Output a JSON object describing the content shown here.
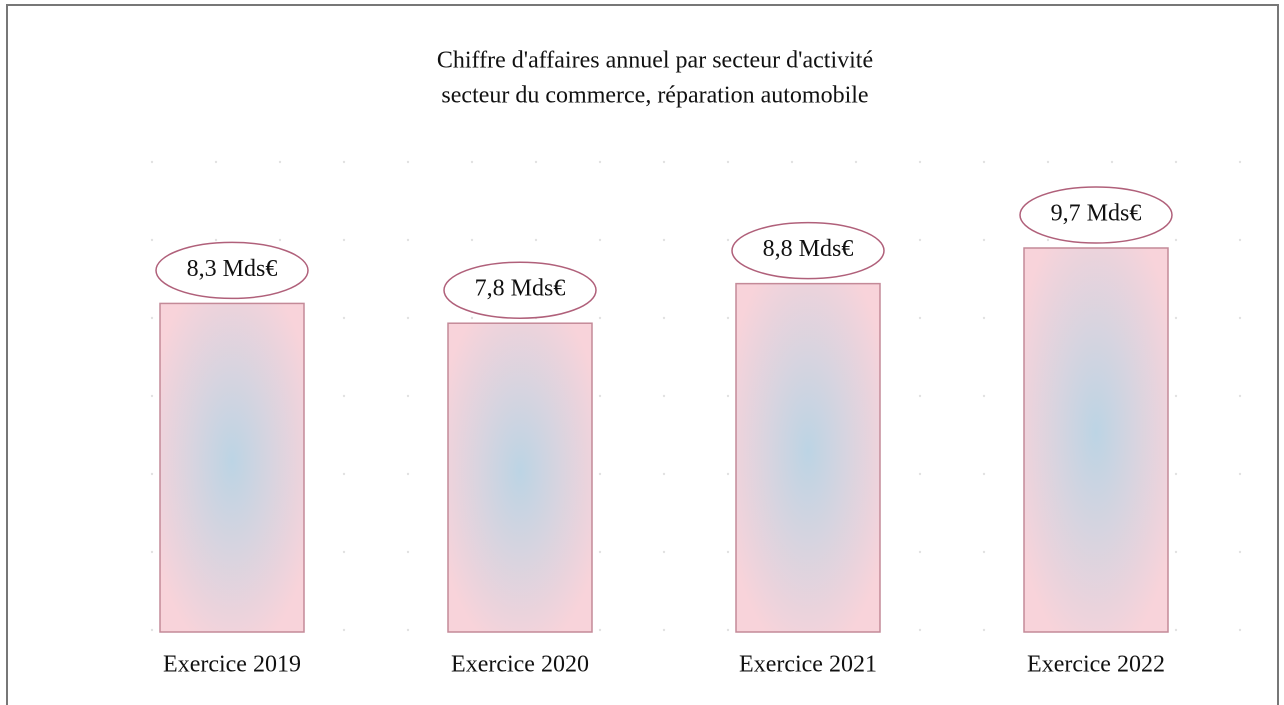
{
  "chart_data": {
    "type": "bar",
    "title": "Chiffre d'affaires annuel par secteur d'activité",
    "subtitle": "secteur du commerce, réparation automobile",
    "categories": [
      "Exercice 2019",
      "Exercice 2020",
      "Exercice 2021",
      "Exercice 2022"
    ],
    "values": [
      8.3,
      7.8,
      8.8,
      9.7
    ],
    "value_labels": [
      "8,3 Mds€",
      "7,8 Mds€",
      "8,8 Mds€",
      "9,7 Mds€"
    ],
    "color": "#f8d3da"
  }
}
